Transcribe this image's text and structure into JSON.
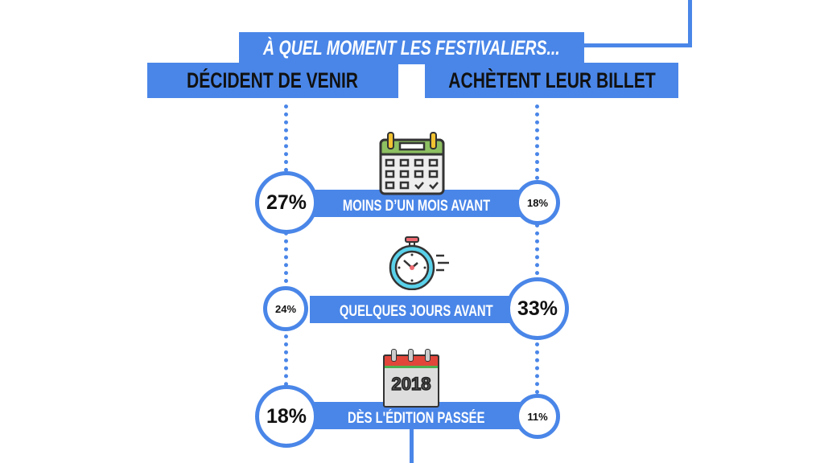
{
  "header": {
    "title": "À QUEL MOMENT LES FESTIVALIERS...",
    "left_heading": "DÉCIDENT DE VENIR",
    "right_heading": "ACHÈTENT LEUR BILLET"
  },
  "rows": [
    {
      "label": "MOINS D’UN MOIS AVANT",
      "decide": "27%",
      "buy": "18%",
      "icon": "calendar-icon"
    },
    {
      "label": "QUELQUES JOURS AVANT",
      "decide": "24%",
      "buy": "33%",
      "icon": "stopwatch-icon"
    },
    {
      "label": "DÈS L'ÉDITION PASSÉE",
      "decide": "18%",
      "buy": "11%",
      "icon": "calendar-2018-icon",
      "icon_text": "2018"
    }
  ],
  "colors": {
    "accent": "#4a86e8"
  }
}
